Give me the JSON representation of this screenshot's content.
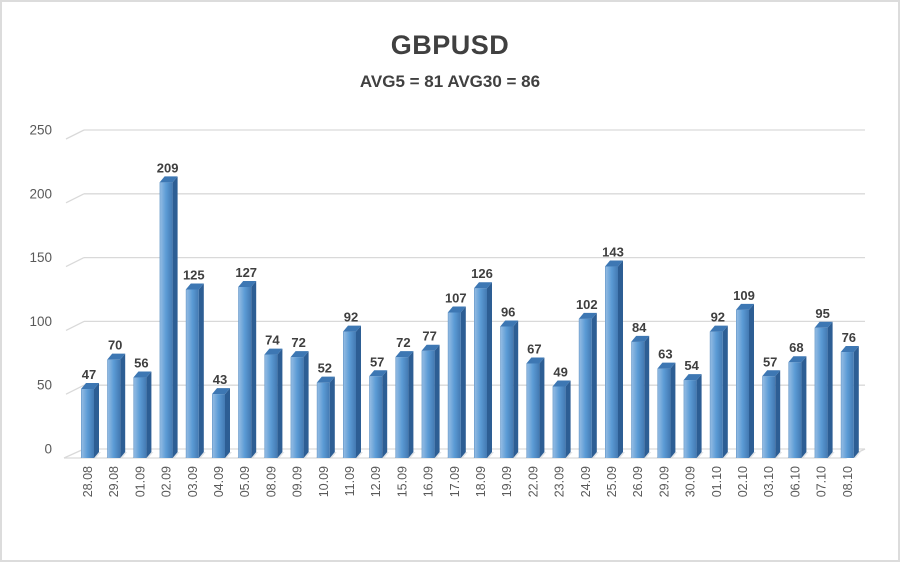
{
  "header": {
    "title": "GBPUSD",
    "subtitle": "AVG5 = 81 AVG30 = 86"
  },
  "chart_data": {
    "type": "bar",
    "style": "3d-column",
    "title": "GBPUSD",
    "subtitle": "AVG5 = 81 AVG30 = 86",
    "categories": [
      "28.08",
      "29.08",
      "01.09",
      "02.09",
      "03.09",
      "04.09",
      "05.09",
      "08.09",
      "09.09",
      "10.09",
      "11.09",
      "12.09",
      "15.09",
      "16.09",
      "17.09",
      "18.09",
      "19.09",
      "22.09",
      "23.09",
      "24.09",
      "25.09",
      "26.09",
      "29.09",
      "30.09",
      "01.10",
      "02.10",
      "03.10",
      "06.10",
      "07.10",
      "08.10"
    ],
    "values": [
      47,
      70,
      56,
      209,
      125,
      43,
      127,
      74,
      72,
      52,
      92,
      57,
      72,
      77,
      107,
      126,
      96,
      67,
      49,
      102,
      143,
      84,
      63,
      54,
      92,
      109,
      57,
      68,
      95,
      76
    ],
    "xlabel": "",
    "ylabel": "",
    "ylim": [
      0,
      250
    ],
    "yticks": [
      0,
      50,
      100,
      150,
      200,
      250
    ],
    "grid": true,
    "legend": false,
    "data_labels": true,
    "colors": {
      "bar_face": "#5b9bd5",
      "bar_face_light": "#8fb9e2",
      "bar_face_edge": "#5e92c4",
      "bar_face_dark": "#4379b2",
      "bar_side": "#2d5e94",
      "bar_top": "#3d77b3",
      "bar_shadow": "#c9ced4",
      "gridline": "#d9d9d9",
      "value_label": "#3f3f3f",
      "axis_text": "#595959",
      "title_text": "#404040"
    }
  }
}
